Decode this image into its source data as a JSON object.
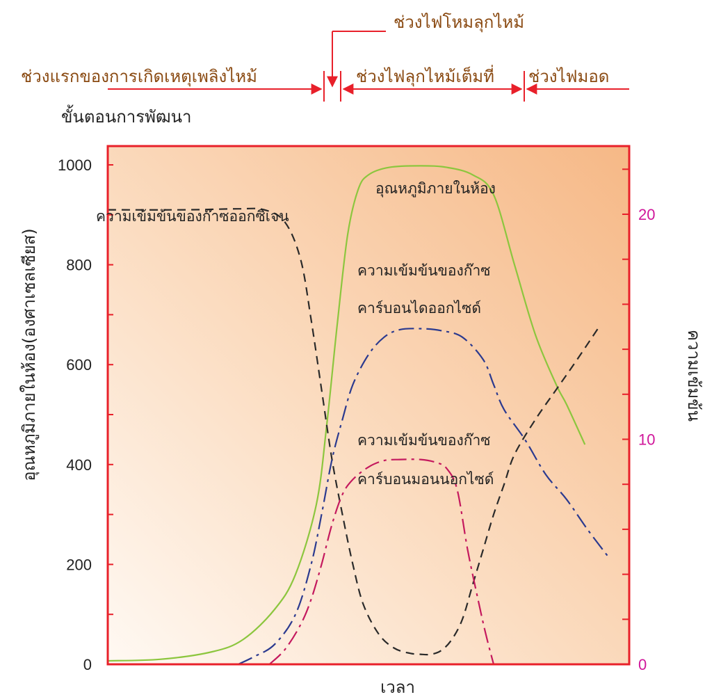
{
  "chart_data": {
    "type": "line",
    "title": "",
    "phases": {
      "development_label": "ขั้นตอนการพัฒนา",
      "items": [
        {
          "label": "ช่วงแรกของการเกิดเหตุเพลิงไหม้"
        },
        {
          "label": "ช่วงไฟโหมลุกไหม้"
        },
        {
          "label": "ช่วงไฟลุกไหม้เต็มที่"
        },
        {
          "label": "ช่วงไฟมอด"
        }
      ]
    },
    "xlabel": "เวลา",
    "ylabel_left": "อุณหภูมิภายในห้อง(องศาเซลเซียส)",
    "ylabel_right": "ความเข้มข้น",
    "y_left": {
      "range": [
        0,
        1000
      ],
      "ticks": [
        "0",
        "200",
        "400",
        "600",
        "800",
        "1000"
      ],
      "tick_values": [
        0,
        200,
        400,
        600,
        800,
        1000
      ]
    },
    "y_right": {
      "range": [
        0,
        24
      ],
      "ticks": [
        "0",
        "10",
        "20"
      ],
      "tick_values": [
        0,
        10,
        20
      ]
    },
    "x_range": [
      0,
      100
    ],
    "series": [
      {
        "name": "อุณหภูมิภายในห้อง",
        "axis": "left",
        "color": "#8cc63e",
        "dash": "solid",
        "x": [
          0,
          10,
          20,
          26,
          32,
          36,
          40,
          42,
          44,
          46,
          48,
          50,
          54,
          60,
          65,
          70,
          74,
          78,
          82,
          86,
          88,
          91.5
        ],
        "y": [
          7,
          10,
          25,
          50,
          110,
          180,
          320,
          480,
          680,
          860,
          950,
          980,
          995,
          998,
          995,
          980,
          940,
          800,
          660,
          560,
          520,
          440
        ]
      },
      {
        "name": "ความเข้มข้นของก๊าซออกซิเจน",
        "axis": "left",
        "color": "#2a2a2a",
        "dash": "dashed",
        "x": [
          0,
          15,
          25,
          30,
          34,
          37,
          39,
          41,
          43,
          45,
          47,
          49,
          52,
          55,
          58,
          60,
          62,
          64,
          66,
          68,
          70,
          72,
          74,
          76,
          78,
          82,
          86,
          90,
          94.5
        ],
        "y": [
          910,
          910,
          912,
          910,
          885,
          810,
          690,
          550,
          410,
          300,
          200,
          120,
          60,
          32,
          22,
          20,
          20,
          28,
          50,
          90,
          160,
          230,
          300,
          360,
          420,
          490,
          550,
          610,
          680
        ]
      },
      {
        "name": "ความเข้มข้นของก๊าซคาร์บอนไดออกไซด์",
        "axis": "left",
        "color": "#2b3a8f",
        "dash": "dashdot",
        "x": [
          25,
          28,
          32,
          36,
          39,
          41,
          43,
          45,
          47,
          50,
          53,
          56,
          60,
          64,
          68,
          72,
          74,
          76,
          80,
          84,
          88,
          92,
          96
        ],
        "y": [
          0,
          15,
          40,
          100,
          200,
          300,
          410,
          490,
          560,
          620,
          655,
          670,
          672,
          668,
          655,
          610,
          560,
          510,
          450,
          380,
          330,
          270,
          215
        ]
      },
      {
        "name": "ความเข้มข้นของก๊าซคาร์บอนมอนนอกไซด์",
        "axis": "left",
        "color": "#c4195e",
        "dash": "dashdot",
        "x": [
          31,
          34,
          37,
          39,
          41,
          43,
          45,
          47,
          50,
          53,
          56,
          60,
          63,
          65,
          67,
          69,
          71,
          72.5,
          74
        ],
        "y": [
          0,
          30,
          80,
          130,
          200,
          280,
          340,
          370,
          395,
          408,
          410,
          410,
          404,
          392,
          350,
          230,
          130,
          60,
          0
        ]
      }
    ],
    "curve_labels": [
      {
        "lines": [
          "อุณหภูมิภายในห้อง"
        ]
      },
      {
        "lines": [
          "ความเข้มข้นของก๊าซออกซิเจน"
        ]
      },
      {
        "lines": [
          "ความเข้มข้นของก๊าซ",
          "คาร์บอนไดออกไซด์"
        ]
      },
      {
        "lines": [
          "ความเข้มข้นของก๊าซ",
          "คาร์บอนมอนนอกไซด์"
        ]
      }
    ],
    "grid": false,
    "colors": {
      "frame": "#e8202a",
      "phase_arrow": "#e8202a",
      "right_axis_text": "#d0169a",
      "bg_top": "#f6bd8d",
      "bg_bottom": "#ffffff"
    }
  }
}
